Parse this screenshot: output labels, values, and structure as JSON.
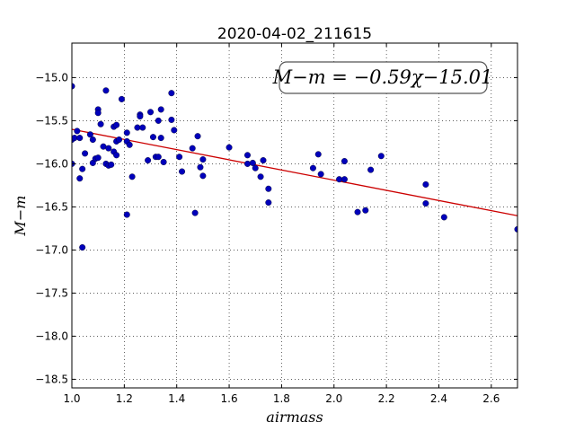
{
  "chart_data": {
    "type": "scatter",
    "title": "2020-04-02_211615",
    "xlabel": "airmass",
    "ylabel": "M−m",
    "xlim": [
      1.0,
      2.7
    ],
    "ylim": [
      -18.6,
      -14.6
    ],
    "y_inverted": true,
    "grid": true,
    "x_ticks": [
      1.0,
      1.2,
      1.4,
      1.6,
      1.8,
      2.0,
      2.2,
      2.4,
      2.6
    ],
    "x_tick_labels": [
      "1.0",
      "1.2",
      "1.4",
      "1.6",
      "1.8",
      "2.0",
      "2.2",
      "2.4",
      "2.6"
    ],
    "y_ticks": [
      -15.0,
      -15.5,
      -16.0,
      -16.5,
      -17.0,
      -17.5,
      -18.0,
      -18.5
    ],
    "y_tick_labels": [
      "−15.0",
      "−15.5",
      "−16.0",
      "−16.5",
      "−17.0",
      "−17.5",
      "−18.0",
      "−18.5"
    ],
    "annotation": "M−m = −0.59χ−15.01",
    "fit": {
      "slope": -0.59,
      "intercept": -15.01,
      "color": "#cc0000"
    },
    "point_color": "#0000bb",
    "points": [
      [
        1.0,
        -15.1
      ],
      [
        1.0,
        -15.72
      ],
      [
        1.01,
        -15.7
      ],
      [
        1.0,
        -16.0
      ],
      [
        1.02,
        -15.62
      ],
      [
        1.03,
        -16.17
      ],
      [
        1.03,
        -15.7
      ],
      [
        1.04,
        -16.06
      ],
      [
        1.04,
        -16.97
      ],
      [
        1.05,
        -15.88
      ],
      [
        1.07,
        -15.66
      ],
      [
        1.08,
        -15.72
      ],
      [
        1.08,
        -15.99
      ],
      [
        1.09,
        -15.94
      ],
      [
        1.1,
        -15.37
      ],
      [
        1.1,
        -15.41
      ],
      [
        1.1,
        -15.93
      ],
      [
        1.11,
        -15.54
      ],
      [
        1.12,
        -15.8
      ],
      [
        1.13,
        -15.15
      ],
      [
        1.13,
        -16.0
      ],
      [
        1.14,
        -15.82
      ],
      [
        1.14,
        -16.02
      ],
      [
        1.15,
        -16.01
      ],
      [
        1.16,
        -15.57
      ],
      [
        1.16,
        -15.86
      ],
      [
        1.17,
        -15.55
      ],
      [
        1.17,
        -15.74
      ],
      [
        1.17,
        -15.9
      ],
      [
        1.18,
        -15.72
      ],
      [
        1.19,
        -15.25
      ],
      [
        1.21,
        -15.64
      ],
      [
        1.21,
        -15.74
      ],
      [
        1.21,
        -16.59
      ],
      [
        1.22,
        -15.78
      ],
      [
        1.23,
        -16.15
      ],
      [
        1.25,
        -15.58
      ],
      [
        1.26,
        -15.43
      ],
      [
        1.26,
        -15.45
      ],
      [
        1.27,
        -15.58
      ],
      [
        1.29,
        -15.96
      ],
      [
        1.3,
        -15.4
      ],
      [
        1.31,
        -15.69
      ],
      [
        1.32,
        -15.92
      ],
      [
        1.33,
        -15.92
      ],
      [
        1.33,
        -15.5
      ],
      [
        1.34,
        -15.37
      ],
      [
        1.34,
        -15.7
      ],
      [
        1.35,
        -15.98
      ],
      [
        1.38,
        -15.18
      ],
      [
        1.38,
        -15.49
      ],
      [
        1.39,
        -15.61
      ],
      [
        1.41,
        -15.92
      ],
      [
        1.42,
        -16.09
      ],
      [
        1.46,
        -15.82
      ],
      [
        1.47,
        -16.57
      ],
      [
        1.48,
        -15.68
      ],
      [
        1.49,
        -16.04
      ],
      [
        1.5,
        -16.14
      ],
      [
        1.5,
        -15.95
      ],
      [
        1.6,
        -15.81
      ],
      [
        1.67,
        -16.0
      ],
      [
        1.67,
        -15.9
      ],
      [
        1.69,
        -15.99
      ],
      [
        1.7,
        -16.05
      ],
      [
        1.72,
        -16.15
      ],
      [
        1.73,
        -15.96
      ],
      [
        1.75,
        -16.29
      ],
      [
        1.75,
        -16.45
      ],
      [
        1.92,
        -16.05
      ],
      [
        1.94,
        -15.89
      ],
      [
        1.95,
        -16.12
      ],
      [
        2.02,
        -16.18
      ],
      [
        2.04,
        -16.18
      ],
      [
        2.04,
        -15.97
      ],
      [
        2.09,
        -16.56
      ],
      [
        2.12,
        -16.54
      ],
      [
        2.14,
        -16.07
      ],
      [
        2.18,
        -15.91
      ],
      [
        2.35,
        -16.24
      ],
      [
        2.35,
        -16.46
      ],
      [
        2.42,
        -16.62
      ],
      [
        2.7,
        -16.76
      ]
    ]
  }
}
